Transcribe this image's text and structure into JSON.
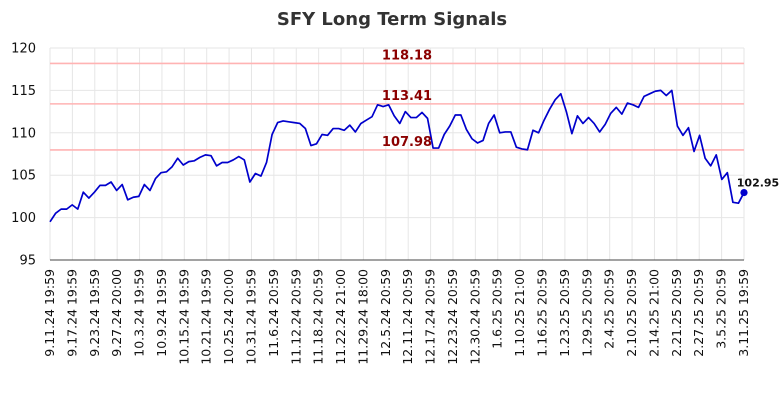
{
  "chart_data": {
    "type": "line",
    "title": "SFY Long Term Signals",
    "xlabel": "",
    "ylabel": "",
    "ylim": [
      95,
      120
    ],
    "yticks": [
      "95",
      "100",
      "105",
      "110",
      "115",
      "120"
    ],
    "grid": true,
    "x_tick_labels": [
      "9.11.24 19:59",
      "9.17.24 19:59",
      "9.23.24 19:59",
      "9.27.24 20:00",
      "10.3.24 19:59",
      "10.9.24 19:59",
      "10.15.24 19:59",
      "10.21.24 19:59",
      "10.25.24 20:00",
      "10.31.24 19:59",
      "11.6.24 20:59",
      "11.12.24 20:59",
      "11.18.24 20:59",
      "11.22.24 21:00",
      "11.29.24 18:00",
      "12.5.24 20:59",
      "12.11.24 20:59",
      "12.17.24 20:59",
      "12.23.24 20:59",
      "12.30.24 20:59",
      "1.6.25 20:59",
      "1.10.25 21:00",
      "1.16.25 20:59",
      "1.23.25 20:59",
      "1.29.25 20:59",
      "2.4.25 20:59",
      "2.10.25 20:59",
      "2.14.25 21:00",
      "2.21.25 20:59",
      "2.27.25 20:59",
      "3.5.25 20:59",
      "3.11.25 19:59"
    ],
    "levels": [
      {
        "value": 118.18,
        "label": "118.18",
        "label_color": "#8b0000",
        "line_color": "#ffb3b3"
      },
      {
        "value": 113.41,
        "label": "113.41",
        "label_color": "#8b0000",
        "line_color": "#ffb3b3"
      },
      {
        "value": 107.98,
        "label": "107.98",
        "label_color": "#8b0000",
        "line_color": "#ffb3b3"
      }
    ],
    "series": [
      {
        "color": "#0000cc",
        "values": [
          99.5,
          100.5,
          101.0,
          101.0,
          101.5,
          101.0,
          103.0,
          102.3,
          103.0,
          103.8,
          103.8,
          104.2,
          103.2,
          103.9,
          102.1,
          102.4,
          102.5,
          103.9,
          103.2,
          104.6,
          105.3,
          105.4,
          106.0,
          107.0,
          106.2,
          106.6,
          106.7,
          107.1,
          107.4,
          107.3,
          106.1,
          106.5,
          106.5,
          106.8,
          107.2,
          106.8,
          104.2,
          105.2,
          104.9,
          106.5,
          109.8,
          111.2,
          111.4,
          111.3,
          111.2,
          111.1,
          110.5,
          108.5,
          108.7,
          109.8,
          109.7,
          110.5,
          110.5,
          110.3,
          110.9,
          110.1,
          111.1,
          111.5,
          111.9,
          113.3,
          113.1,
          113.3,
          112.0,
          111.1,
          112.5,
          111.8,
          111.8,
          112.4,
          111.7,
          108.2,
          108.2,
          109.8,
          110.8,
          112.1,
          112.1,
          110.4,
          109.3,
          108.8,
          109.1,
          111.1,
          112.1,
          110.0,
          110.1,
          110.1,
          108.3,
          108.1,
          108.0,
          110.3,
          110.0,
          111.5,
          112.8,
          113.9,
          114.6,
          112.5,
          109.9,
          112.0,
          111.1,
          111.8,
          111.1,
          110.1,
          111.0,
          112.3,
          113.0,
          112.2,
          113.5,
          113.3,
          113.0,
          114.3,
          114.6,
          114.9,
          115.0,
          114.4,
          115.0,
          110.8,
          109.7,
          110.6,
          107.8,
          109.7,
          107.0,
          106.1,
          107.4,
          104.5,
          105.3,
          101.8,
          101.7,
          102.95
        ]
      }
    ],
    "last_value_label": "102.95"
  }
}
